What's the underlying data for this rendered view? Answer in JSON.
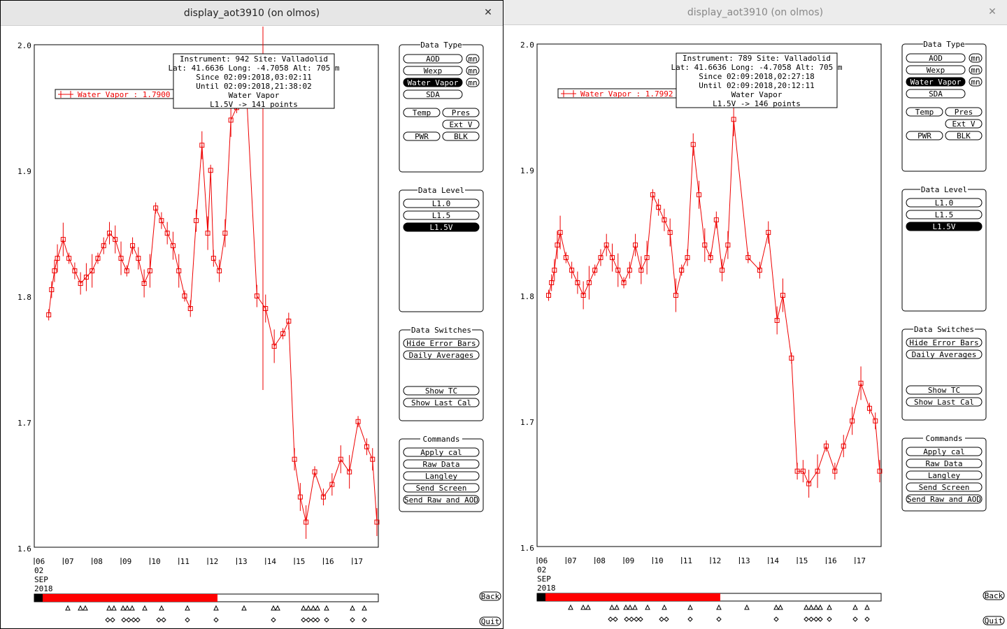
{
  "windows": [
    {
      "title": "display_aot3910 (on olmos)",
      "info": {
        "line1": "Instrument: 942 Site: Valladolid",
        "line2": "Lat: 41.6636 Long: -4.7058 Alt: 705 m",
        "line3": "Since 02:09:2018,03:02:11",
        "line4": "Until 02:09:2018,21:38:02",
        "line5": "Water Vapor",
        "line6": "L1.5V -> 141 points"
      },
      "legend": "Water Vapor : 1.7900 ±",
      "progress": 0.52
    },
    {
      "title": "display_aot3910 (on olmos)",
      "info": {
        "line1": "Instrument: 789 Site: Valladolid",
        "line2": "Lat: 41.6636 Long: -4.7058 Alt: 705 m",
        "line3": "Since 02:09:2018,02:27:18",
        "line4": "Until 02:09:2018,20:12:11",
        "line5": "Water Vapor",
        "line6": "L1.5V -> 146 points"
      },
      "legend": "Water Vapor : 1.7992 ±",
      "progress": 0.52
    }
  ],
  "panels": {
    "data_type": {
      "title": "Data Type",
      "aod": "AOD",
      "wexp": "Wexp",
      "water_vapor": "Water Vapor",
      "sda": "SDA",
      "mn": "mn",
      "temp": "Temp",
      "pres": "Pres",
      "ext_v": "Ext V",
      "pwr": "PWR",
      "blk": "BLK"
    },
    "data_level": {
      "title": "Data Level",
      "l10": "L1.0",
      "l15": "L1.5",
      "l15v": "L1.5V"
    },
    "data_switches": {
      "title": "Data Switches",
      "hide_error_bars": "Hide Error Bars",
      "daily_averages": "Daily Averages",
      "show_tc": "Show TC",
      "show_last_cal": "Show Last Cal"
    },
    "commands": {
      "title": "Commands",
      "apply_cal": "Apply cal",
      "raw_data": "Raw Data",
      "langley": "Langley",
      "send_screen": "Send Screen",
      "send_raw_aod": "Send Raw and AOD"
    }
  },
  "nav": {
    "back": "Back",
    "quit": "Quit"
  },
  "axis": {
    "y_ticks": [
      "2.0",
      "1.9",
      "1.8",
      "1.7",
      "1.6"
    ],
    "x_ticks": [
      "06",
      "07",
      "08",
      "09",
      "10",
      "11",
      "12",
      "13",
      "14",
      "15",
      "16",
      "17"
    ],
    "date_line1": "02",
    "date_line2": "SEP",
    "date_line3": "2018"
  },
  "chart_data": [
    {
      "type": "scatter",
      "title": "",
      "xlabel": "",
      "ylabel": "",
      "ylim": [
        1.6,
        2.0
      ],
      "xlim": [
        6,
        17.9
      ],
      "series": [
        {
          "name": "Water Vapor",
          "x": [
            6.5,
            6.6,
            6.7,
            6.8,
            7.0,
            7.2,
            7.4,
            7.6,
            7.8,
            8.0,
            8.2,
            8.4,
            8.6,
            8.8,
            9.0,
            9.2,
            9.4,
            9.6,
            9.8,
            10.0,
            10.2,
            10.4,
            10.6,
            10.8,
            11.0,
            11.2,
            11.4,
            11.6,
            11.8,
            12.0,
            12.1,
            12.2,
            12.4,
            12.6,
            12.8,
            13.0,
            13.3,
            13.7,
            14.0,
            14.3,
            14.6,
            14.8,
            15.0,
            15.2,
            15.4,
            15.7,
            16.0,
            16.3,
            16.6,
            16.9,
            17.2,
            17.5,
            17.7,
            17.85
          ],
          "y": [
            1.785,
            1.805,
            1.82,
            1.83,
            1.845,
            1.83,
            1.82,
            1.81,
            1.815,
            1.82,
            1.83,
            1.84,
            1.85,
            1.845,
            1.83,
            1.82,
            1.84,
            1.83,
            1.81,
            1.82,
            1.87,
            1.86,
            1.85,
            1.84,
            1.82,
            1.8,
            1.79,
            1.86,
            1.92,
            1.85,
            1.9,
            1.83,
            1.82,
            1.85,
            1.94,
            1.95,
            1.98,
            1.8,
            1.79,
            1.76,
            1.77,
            1.78,
            1.67,
            1.64,
            1.62,
            1.66,
            1.64,
            1.65,
            1.67,
            1.66,
            1.7,
            1.68,
            1.67,
            1.62
          ],
          "values_note": "approximate"
        }
      ]
    },
    {
      "type": "scatter",
      "title": "",
      "xlabel": "",
      "ylabel": "",
      "ylim": [
        1.6,
        2.0
      ],
      "xlim": [
        6,
        17.9
      ],
      "series": [
        {
          "name": "Water Vapor",
          "x": [
            6.4,
            6.5,
            6.6,
            6.7,
            6.8,
            7.0,
            7.2,
            7.4,
            7.6,
            7.8,
            8.0,
            8.2,
            8.4,
            8.6,
            8.8,
            9.0,
            9.2,
            9.4,
            9.6,
            9.8,
            10.0,
            10.2,
            10.4,
            10.6,
            10.8,
            11.0,
            11.2,
            11.4,
            11.6,
            11.8,
            12.0,
            12.2,
            12.4,
            12.6,
            12.8,
            13.3,
            13.7,
            14.0,
            14.3,
            14.5,
            14.8,
            15.0,
            15.2,
            15.4,
            15.7,
            16.0,
            16.3,
            16.6,
            16.9,
            17.2,
            17.5,
            17.7,
            17.85
          ],
          "y": [
            1.8,
            1.81,
            1.82,
            1.84,
            1.85,
            1.83,
            1.82,
            1.81,
            1.8,
            1.81,
            1.82,
            1.83,
            1.84,
            1.83,
            1.82,
            1.81,
            1.82,
            1.84,
            1.82,
            1.83,
            1.88,
            1.87,
            1.86,
            1.85,
            1.8,
            1.82,
            1.83,
            1.92,
            1.88,
            1.84,
            1.83,
            1.86,
            1.82,
            1.84,
            1.94,
            1.83,
            1.82,
            1.85,
            1.78,
            1.8,
            1.75,
            1.66,
            1.66,
            1.65,
            1.66,
            1.68,
            1.66,
            1.68,
            1.7,
            1.73,
            1.71,
            1.7,
            1.66
          ],
          "values_note": "approximate"
        }
      ]
    }
  ]
}
